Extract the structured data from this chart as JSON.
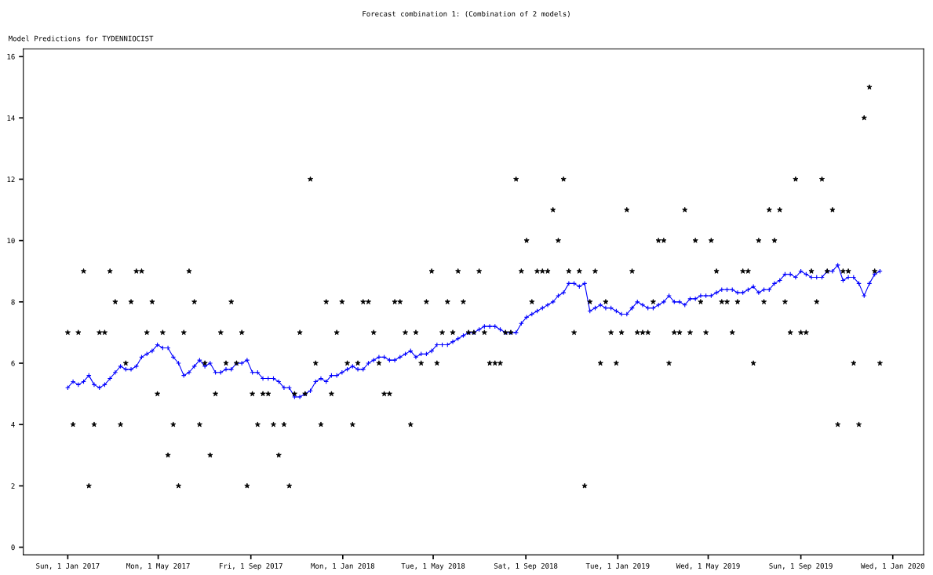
{
  "chart_data": {
    "type": "line",
    "title": "Forecast combination 1: (Combination of 2 models)",
    "subtitle": "Model Predictions for TYDENNIOCIST",
    "x": [
      "2017-01-01",
      "2017-01-08",
      "2017-01-15",
      "2017-01-22",
      "2017-01-29",
      "2017-02-05",
      "2017-02-12",
      "2017-02-19",
      "2017-02-26",
      "2017-03-05",
      "2017-03-12",
      "2017-03-19",
      "2017-03-26",
      "2017-04-02",
      "2017-04-09",
      "2017-04-16",
      "2017-04-23",
      "2017-04-30",
      "2017-05-07",
      "2017-05-14",
      "2017-05-21",
      "2017-05-28",
      "2017-06-04",
      "2017-06-11",
      "2017-06-18",
      "2017-06-25",
      "2017-07-02",
      "2017-07-09",
      "2017-07-16",
      "2017-07-23",
      "2017-07-30",
      "2017-08-06",
      "2017-08-13",
      "2017-08-20",
      "2017-08-27",
      "2017-09-03",
      "2017-09-10",
      "2017-09-17",
      "2017-09-24",
      "2017-10-01",
      "2017-10-08",
      "2017-10-15",
      "2017-10-22",
      "2017-10-29",
      "2017-11-05",
      "2017-11-12",
      "2017-11-19",
      "2017-11-26",
      "2017-12-03",
      "2017-12-10",
      "2017-12-17",
      "2017-12-24",
      "2017-12-31",
      "2018-01-07",
      "2018-01-14",
      "2018-01-21",
      "2018-01-28",
      "2018-02-04",
      "2018-02-11",
      "2018-02-18",
      "2018-02-25",
      "2018-03-04",
      "2018-03-11",
      "2018-03-18",
      "2018-03-25",
      "2018-04-01",
      "2018-04-08",
      "2018-04-15",
      "2018-04-22",
      "2018-04-29",
      "2018-05-06",
      "2018-05-13",
      "2018-05-20",
      "2018-05-27",
      "2018-06-03",
      "2018-06-10",
      "2018-06-17",
      "2018-06-24",
      "2018-07-01",
      "2018-07-08",
      "2018-07-15",
      "2018-07-22",
      "2018-07-29",
      "2018-08-05",
      "2018-08-12",
      "2018-08-19",
      "2018-08-26",
      "2018-09-02",
      "2018-09-09",
      "2018-09-16",
      "2018-09-23",
      "2018-09-30",
      "2018-10-07",
      "2018-10-14",
      "2018-10-21",
      "2018-10-28",
      "2018-11-04",
      "2018-11-11",
      "2018-11-18",
      "2018-11-25",
      "2018-12-02",
      "2018-12-09",
      "2018-12-16",
      "2018-12-23",
      "2018-12-30",
      "2019-01-06",
      "2019-01-13",
      "2019-01-20",
      "2019-01-27",
      "2019-02-03",
      "2019-02-10",
      "2019-02-17",
      "2019-02-24",
      "2019-03-03",
      "2019-03-10",
      "2019-03-17",
      "2019-03-24",
      "2019-03-31",
      "2019-04-07",
      "2019-04-14",
      "2019-04-21",
      "2019-04-28",
      "2019-05-05",
      "2019-05-12",
      "2019-05-19",
      "2019-05-26",
      "2019-06-02",
      "2019-06-09",
      "2019-06-16",
      "2019-06-23",
      "2019-06-30",
      "2019-07-07",
      "2019-07-14",
      "2019-07-21",
      "2019-07-28",
      "2019-08-04",
      "2019-08-11",
      "2019-08-18",
      "2019-08-25",
      "2019-09-01",
      "2019-09-08",
      "2019-09-15",
      "2019-09-22",
      "2019-09-29",
      "2019-10-06",
      "2019-10-13",
      "2019-10-20",
      "2019-10-27",
      "2019-11-03",
      "2019-11-10",
      "2019-11-17",
      "2019-11-24",
      "2019-12-01",
      "2019-12-08",
      "2019-12-15"
    ],
    "series": [
      {
        "type": "scatter",
        "color": "#000000",
        "marker": "star",
        "values": [
          7,
          4,
          7,
          9,
          2,
          4,
          7,
          7,
          9,
          8,
          4,
          6,
          8,
          9,
          9,
          7,
          8,
          5,
          7,
          3,
          4,
          2,
          7,
          9,
          8,
          4,
          6,
          3,
          5,
          7,
          6,
          8,
          6,
          7,
          2,
          5,
          4,
          5,
          5,
          4,
          3,
          4,
          2,
          5,
          7,
          5,
          12,
          6,
          4,
          8,
          5,
          7,
          8,
          6,
          4,
          6,
          8,
          8,
          7,
          6,
          5,
          5,
          8,
          8,
          7,
          4,
          7,
          6,
          8,
          9,
          6,
          7,
          8,
          7,
          9,
          8,
          7,
          7,
          9,
          7,
          6,
          6,
          6,
          7,
          7,
          12,
          9,
          10,
          8,
          9,
          9,
          9,
          11,
          10,
          12,
          9,
          7,
          9,
          2,
          8,
          9,
          6,
          8,
          7,
          6,
          7,
          11,
          9,
          7,
          7,
          7,
          8,
          10,
          10,
          6,
          7,
          7,
          11,
          7,
          10,
          8,
          7,
          10,
          9,
          8,
          8,
          7,
          8,
          9,
          9,
          6,
          10,
          8,
          11,
          10,
          11,
          8,
          7,
          12,
          7,
          7,
          9,
          8,
          12,
          9,
          11,
          4,
          9,
          9,
          6,
          4,
          14,
          15,
          9,
          6
        ]
      },
      {
        "color": "#0000ff",
        "marker": "cross",
        "line_style": "solid",
        "values": [
          5.2,
          5.4,
          5.3,
          5.4,
          5.6,
          5.3,
          5.2,
          5.3,
          5.5,
          5.7,
          5.9,
          5.8,
          5.8,
          5.9,
          6.2,
          6.3,
          6.4,
          6.6,
          6.5,
          6.5,
          6.2,
          6.0,
          5.6,
          5.7,
          5.9,
          6.1,
          5.9,
          6.0,
          5.7,
          5.7,
          5.8,
          5.8,
          6.0,
          6.0,
          6.1,
          5.7,
          5.7,
          5.5,
          5.5,
          5.5,
          5.4,
          5.2,
          5.2,
          4.9,
          4.9,
          5.0,
          5.1,
          5.4,
          5.5,
          5.4,
          5.6,
          5.6,
          5.7,
          5.8,
          5.9,
          5.8,
          5.8,
          6.0,
          6.1,
          6.2,
          6.2,
          6.1,
          6.1,
          6.2,
          6.3,
          6.4,
          6.2,
          6.3,
          6.3,
          6.4,
          6.6,
          6.6,
          6.6,
          6.7,
          6.8,
          6.9,
          7.0,
          7.0,
          7.1,
          7.2,
          7.2,
          7.2,
          7.1,
          7.0,
          7.0,
          7.0,
          7.3,
          7.5,
          7.6,
          7.7,
          7.8,
          7.9,
          8.0,
          8.2,
          8.3,
          8.6,
          8.6,
          8.5,
          8.6,
          7.7,
          7.8,
          7.9,
          7.8,
          7.8,
          7.7,
          7.6,
          7.6,
          7.8,
          8.0,
          7.9,
          7.8,
          7.8,
          7.9,
          8.0,
          8.2,
          8.0,
          8.0,
          7.9,
          8.1,
          8.1,
          8.2,
          8.2,
          8.2,
          8.3,
          8.4,
          8.4,
          8.4,
          8.3,
          8.3,
          8.4,
          8.5,
          8.3,
          8.4,
          8.4,
          8.6,
          8.7,
          8.9,
          8.9,
          8.8,
          9.0,
          8.9,
          8.8,
          8.8,
          8.8,
          9.0,
          9.0,
          9.2,
          8.7,
          8.8,
          8.8,
          8.6,
          8.2,
          8.6,
          8.9,
          9.0
        ]
      }
    ],
    "xlim": [
      "2016-11-03",
      "2020-02-11"
    ],
    "xticks": [
      {
        "value": "2017-01-01",
        "label": "Sun, 1 Jan 2017"
      },
      {
        "value": "2017-05-01",
        "label": "Mon, 1 May 2017"
      },
      {
        "value": "2017-09-01",
        "label": "Fri, 1 Sep 2017"
      },
      {
        "value": "2018-01-01",
        "label": "Mon, 1 Jan 2018"
      },
      {
        "value": "2018-05-01",
        "label": "Tue, 1 May 2018"
      },
      {
        "value": "2018-09-01",
        "label": "Sat, 1 Sep 2018"
      },
      {
        "value": "2019-01-01",
        "label": "Tue, 1 Jan 2019"
      },
      {
        "value": "2019-05-01",
        "label": "Wed, 1 May 2019"
      },
      {
        "value": "2019-09-01",
        "label": "Sun, 1 Sep 2019"
      },
      {
        "value": "2020-01-01",
        "label": "Wed, 1 Jan 2020"
      }
    ],
    "ylim": [
      -0.25,
      16.25
    ],
    "yticks": [
      0,
      2,
      4,
      6,
      8,
      10,
      12,
      14,
      16
    ],
    "grid": false,
    "legend": false
  }
}
